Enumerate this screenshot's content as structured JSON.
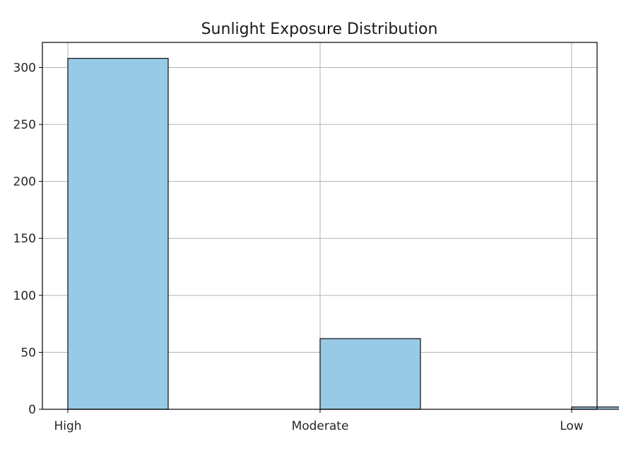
{
  "chart_data": {
    "type": "bar",
    "title": "Sunlight Exposure Distribution",
    "xlabel": "",
    "ylabel": "",
    "categories": [
      "High",
      "Moderate",
      "Low"
    ],
    "values": [
      308,
      62,
      2
    ],
    "ylim": [
      0,
      322
    ],
    "yticks": [
      0,
      50,
      100,
      150,
      200,
      250,
      300
    ],
    "grid": true,
    "colors": {
      "bar_fill": "#97cae7",
      "bar_edge": "#1a1a1a",
      "grid": "#b0b0b0",
      "axes": "#000000"
    }
  }
}
